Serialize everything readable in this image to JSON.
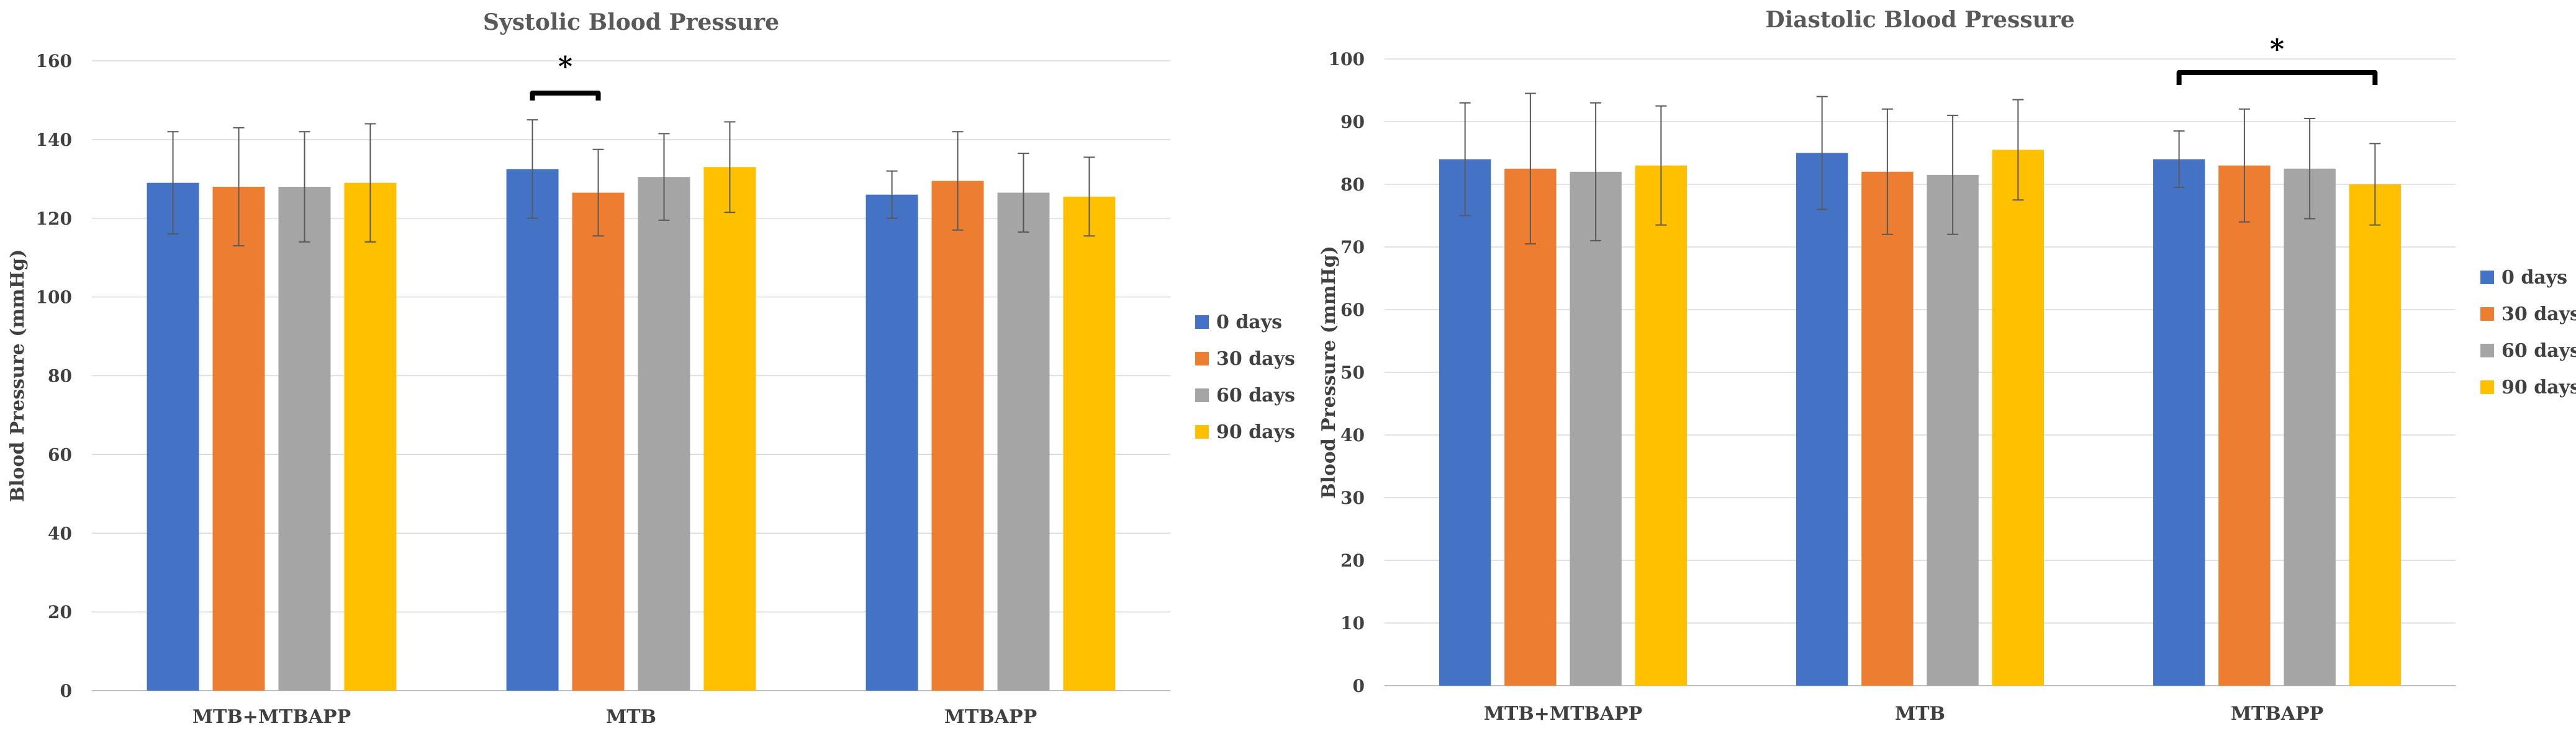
{
  "chart_data": [
    {
      "type": "bar",
      "title": "Systolic Blood Pressure",
      "xlabel": "",
      "ylabel": "Blood Pressure (mmHg)",
      "ylim": [
        0,
        160
      ],
      "yticks": [
        0,
        20,
        40,
        60,
        80,
        100,
        120,
        140,
        160
      ],
      "categories": [
        "MTB+MTBAPP",
        "MTB",
        "MTBAPP"
      ],
      "series": [
        {
          "name": "0 days",
          "color": "#4472C4",
          "values": [
            129,
            132.5,
            126
          ],
          "errors": [
            13,
            12.5,
            6
          ]
        },
        {
          "name": "30 days",
          "color": "#ED7D31",
          "values": [
            128,
            126.5,
            129.5
          ],
          "errors": [
            15,
            11,
            12.5
          ]
        },
        {
          "name": "60 days",
          "color": "#A5A5A5",
          "values": [
            128,
            130.5,
            126.5
          ],
          "errors": [
            14,
            11,
            10
          ]
        },
        {
          "name": "90 days",
          "color": "#FFC000",
          "values": [
            129,
            133,
            125.5
          ],
          "errors": [
            15,
            11.5,
            10
          ]
        }
      ],
      "significance": {
        "label": "*",
        "category": "MTB",
        "between": [
          "0 days",
          "30 days"
        ]
      },
      "legend_position": "right",
      "grid": true
    },
    {
      "type": "bar",
      "title": "Diastolic Blood Pressure",
      "xlabel": "",
      "ylabel": "Blood Pressure (mmHg)",
      "ylim": [
        0,
        100
      ],
      "yticks": [
        0,
        10,
        20,
        30,
        40,
        50,
        60,
        70,
        80,
        90,
        100
      ],
      "categories": [
        "MTB+MTBAPP",
        "MTB",
        "MTBAPP"
      ],
      "series": [
        {
          "name": "0 days",
          "color": "#4472C4",
          "values": [
            84,
            85,
            84
          ],
          "errors": [
            9,
            9,
            4.5
          ]
        },
        {
          "name": "30 days",
          "color": "#ED7D31",
          "values": [
            82.5,
            82,
            83
          ],
          "errors": [
            12,
            10,
            9
          ]
        },
        {
          "name": "60 days",
          "color": "#A5A5A5",
          "values": [
            82,
            81.5,
            82.5
          ],
          "errors": [
            11,
            9.5,
            8
          ]
        },
        {
          "name": "90 days",
          "color": "#FFC000",
          "values": [
            83,
            85.5,
            80
          ],
          "errors": [
            9.5,
            8,
            6.5
          ]
        }
      ],
      "significance": {
        "label": "*",
        "category": "MTBAPP",
        "between": [
          "0 days",
          "90 days"
        ]
      },
      "legend_position": "right",
      "grid": true
    }
  ]
}
